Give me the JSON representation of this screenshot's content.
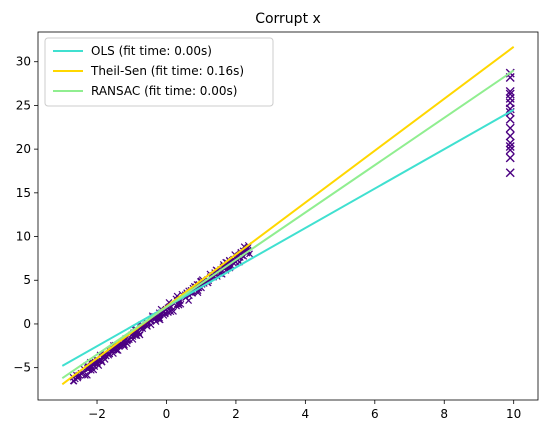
{
  "chart_data": {
    "type": "line",
    "title": "Corrupt x",
    "xlabel": "",
    "ylabel": "",
    "xlim": [
      -3.7,
      10.7
    ],
    "ylim": [
      -8.7,
      33.4
    ],
    "x_ticks": [
      -2,
      0,
      2,
      4,
      6,
      8,
      10
    ],
    "x_tick_labels": [
      "−2",
      "0",
      "2",
      "4",
      "6",
      "8",
      "10"
    ],
    "y_ticks": [
      -5,
      0,
      5,
      10,
      15,
      20,
      25,
      30
    ],
    "y_tick_labels": [
      "−5",
      "0",
      "5",
      "10",
      "15",
      "20",
      "25",
      "30"
    ],
    "grid": false,
    "legend_position": "top-left",
    "series": [
      {
        "name": "OLS (fit time: 0.00s)",
        "color": "#40e0d0",
        "x": [
          -3,
          10
        ],
        "y": [
          -4.8,
          24.5
        ]
      },
      {
        "name": "Theil-Sen (fit time: 0.16s)",
        "color": "#ffd700",
        "x": [
          -3,
          10
        ],
        "y": [
          -6.9,
          31.7
        ]
      },
      {
        "name": "RANSAC (fit time: 0.00s)",
        "color": "#90ee90",
        "x": [
          -3,
          10
        ],
        "y": [
          -6.2,
          29.0
        ]
      }
    ],
    "scatter": {
      "color": "#4b0082",
      "marker": "x",
      "outliers_x": 9.9,
      "outliers_y": [
        17.3,
        19.0,
        19.9,
        20.3,
        20.7,
        21.5,
        22.4,
        23.4,
        24.2,
        24.6,
        25.3,
        25.8,
        26.3,
        26.6,
        28.2,
        28.7
      ]
    }
  }
}
